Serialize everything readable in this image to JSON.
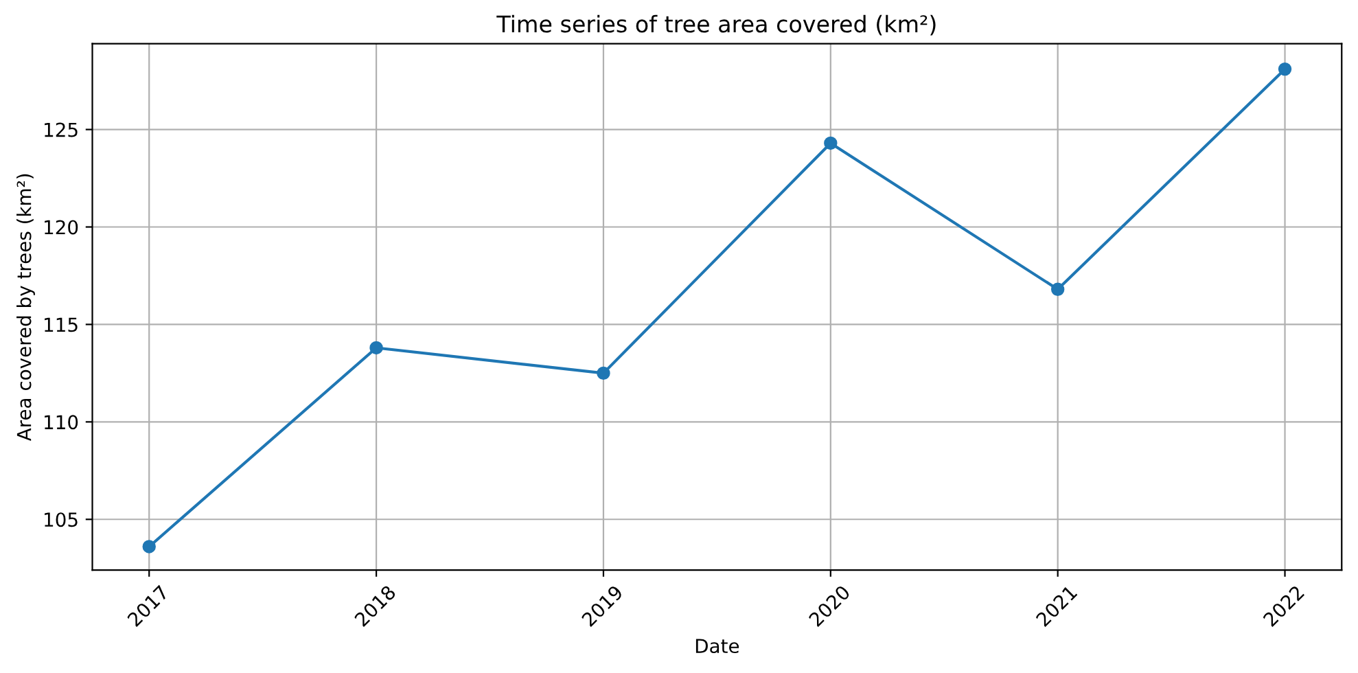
{
  "chart_data": {
    "type": "line",
    "title": "Time series of tree area covered (km²)",
    "xlabel": "Date",
    "ylabel": "Area covered by trees (km²)",
    "x": [
      2017,
      2018,
      2019,
      2020,
      2021,
      2022
    ],
    "series": [
      {
        "color": "#1f77b4",
        "values": [
          103.6,
          113.8,
          112.5,
          124.3,
          116.8,
          128.1
        ]
      }
    ],
    "xlim": [
      2016.75,
      2022.25
    ],
    "xticks": [
      2017,
      2018,
      2019,
      2020,
      2021,
      2022
    ],
    "ylim": [
      102.4,
      129.4
    ],
    "yticks": [
      105,
      110,
      115,
      120,
      125
    ],
    "grid": true,
    "marker": "circle",
    "line_style": "solid",
    "legend": false
  }
}
